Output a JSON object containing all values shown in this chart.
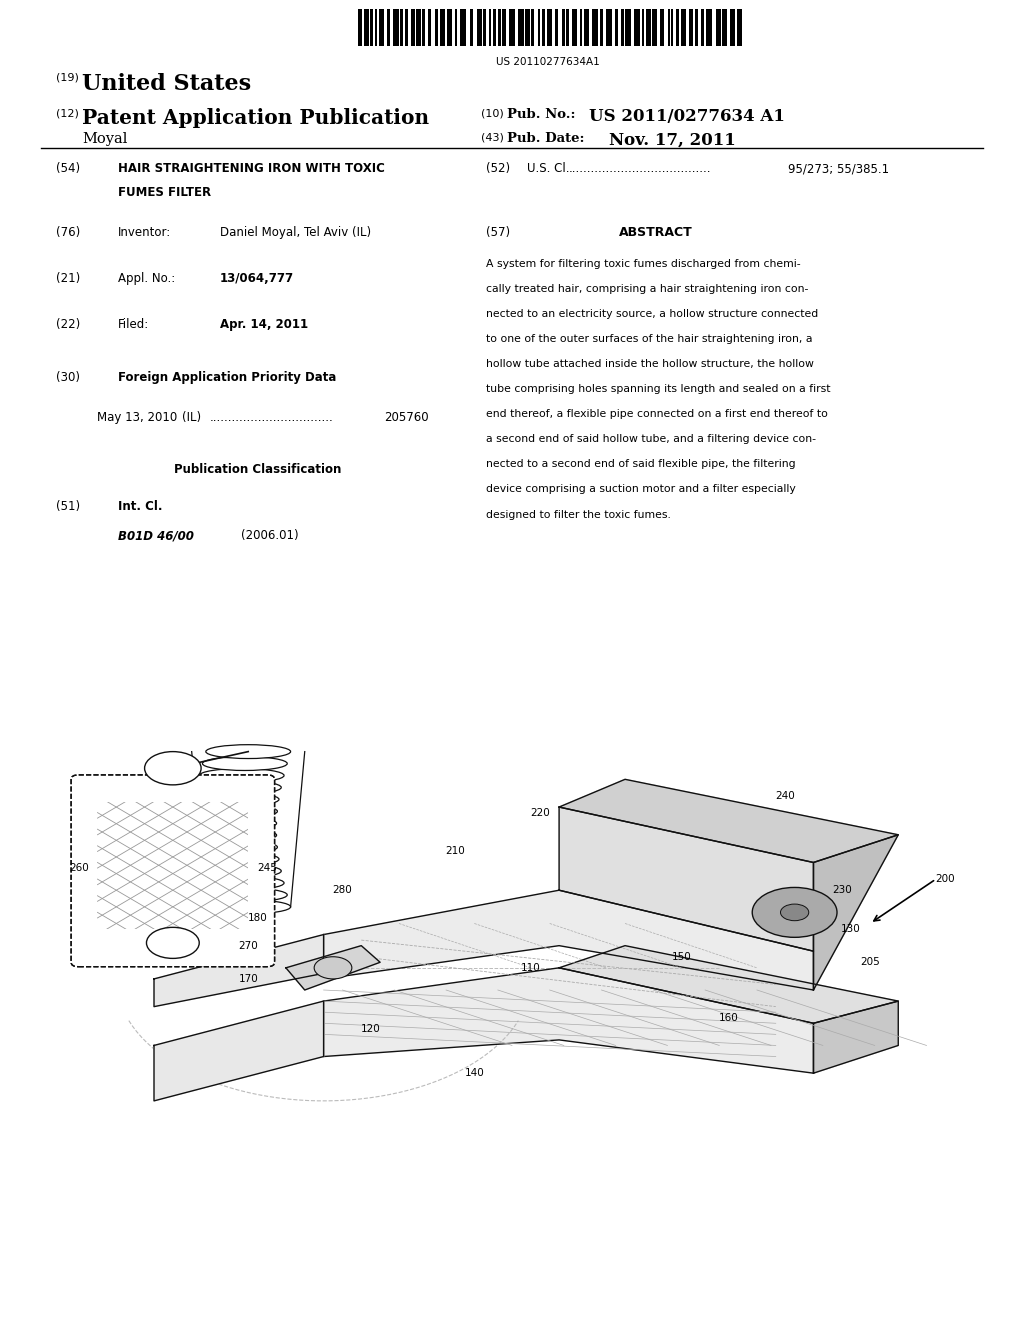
{
  "background_color": "#ffffff",
  "barcode_text": "US 20110277634A1",
  "header": {
    "label19": "(19)",
    "us_text": "United States",
    "label12": "(12)",
    "app_pub": "Patent Application Publication",
    "inventor_name": "Moyal",
    "label10": "(10)",
    "pub_no_label": "Pub. No.:",
    "pub_no": "US 2011/0277634 A1",
    "label43": "(43)",
    "pub_date_label": "Pub. Date:",
    "pub_date": "Nov. 17, 2011"
  },
  "left_col": {
    "title_label": "(54)",
    "title_line1": "HAIR STRAIGHTENING IRON WITH TOXIC",
    "title_line2": "FUMES FILTER",
    "inventor_label": "(76)",
    "inventor_key": "Inventor:",
    "inventor_val": "Daniel Moyal, Tel Aviv (IL)",
    "appl_label": "(21)",
    "appl_key": "Appl. No.:",
    "appl_val": "13/064,777",
    "filed_label": "(22)",
    "filed_key": "Filed:",
    "filed_val": "Apr. 14, 2011",
    "foreign_label": "(30)",
    "foreign_title": "Foreign Application Priority Data",
    "foreign_date": "May 13, 2010",
    "foreign_country": "(IL)",
    "foreign_dots": ".................................",
    "foreign_num": "205760",
    "pub_class_title": "Publication Classification",
    "intcl_label": "(51)",
    "intcl_key": "Int. Cl.",
    "intcl_val": "B01D 46/00",
    "intcl_year": "(2006.01)"
  },
  "right_col": {
    "uscl_label": "(52)",
    "uscl_key": "U.S. Cl.",
    "uscl_dots": "......................................",
    "uscl_val": "95/273; 55/385.1",
    "abstract_label": "(57)",
    "abstract_title": "ABSTRACT",
    "abstract_text": "A system for filtering toxic fumes discharged from chemi-\ncally treated hair, comprising a hair straightening iron con-\nnected to an electricity source, a hollow structure connected\nto one of the outer surfaces of the hair straightening iron, a\nhollow tube attached inside the hollow structure, the hollow\ntube comprising holes spanning its length and sealed on a first\nend thereof, a flexible pipe connected on a first end thereof to\na second end of said hollow tube, and a filtering device con-\nnected to a second end of said flexible pipe, the filtering\ndevice comprising a suction motor and a filter especially\ndesigned to filter the toxic fumes."
  }
}
